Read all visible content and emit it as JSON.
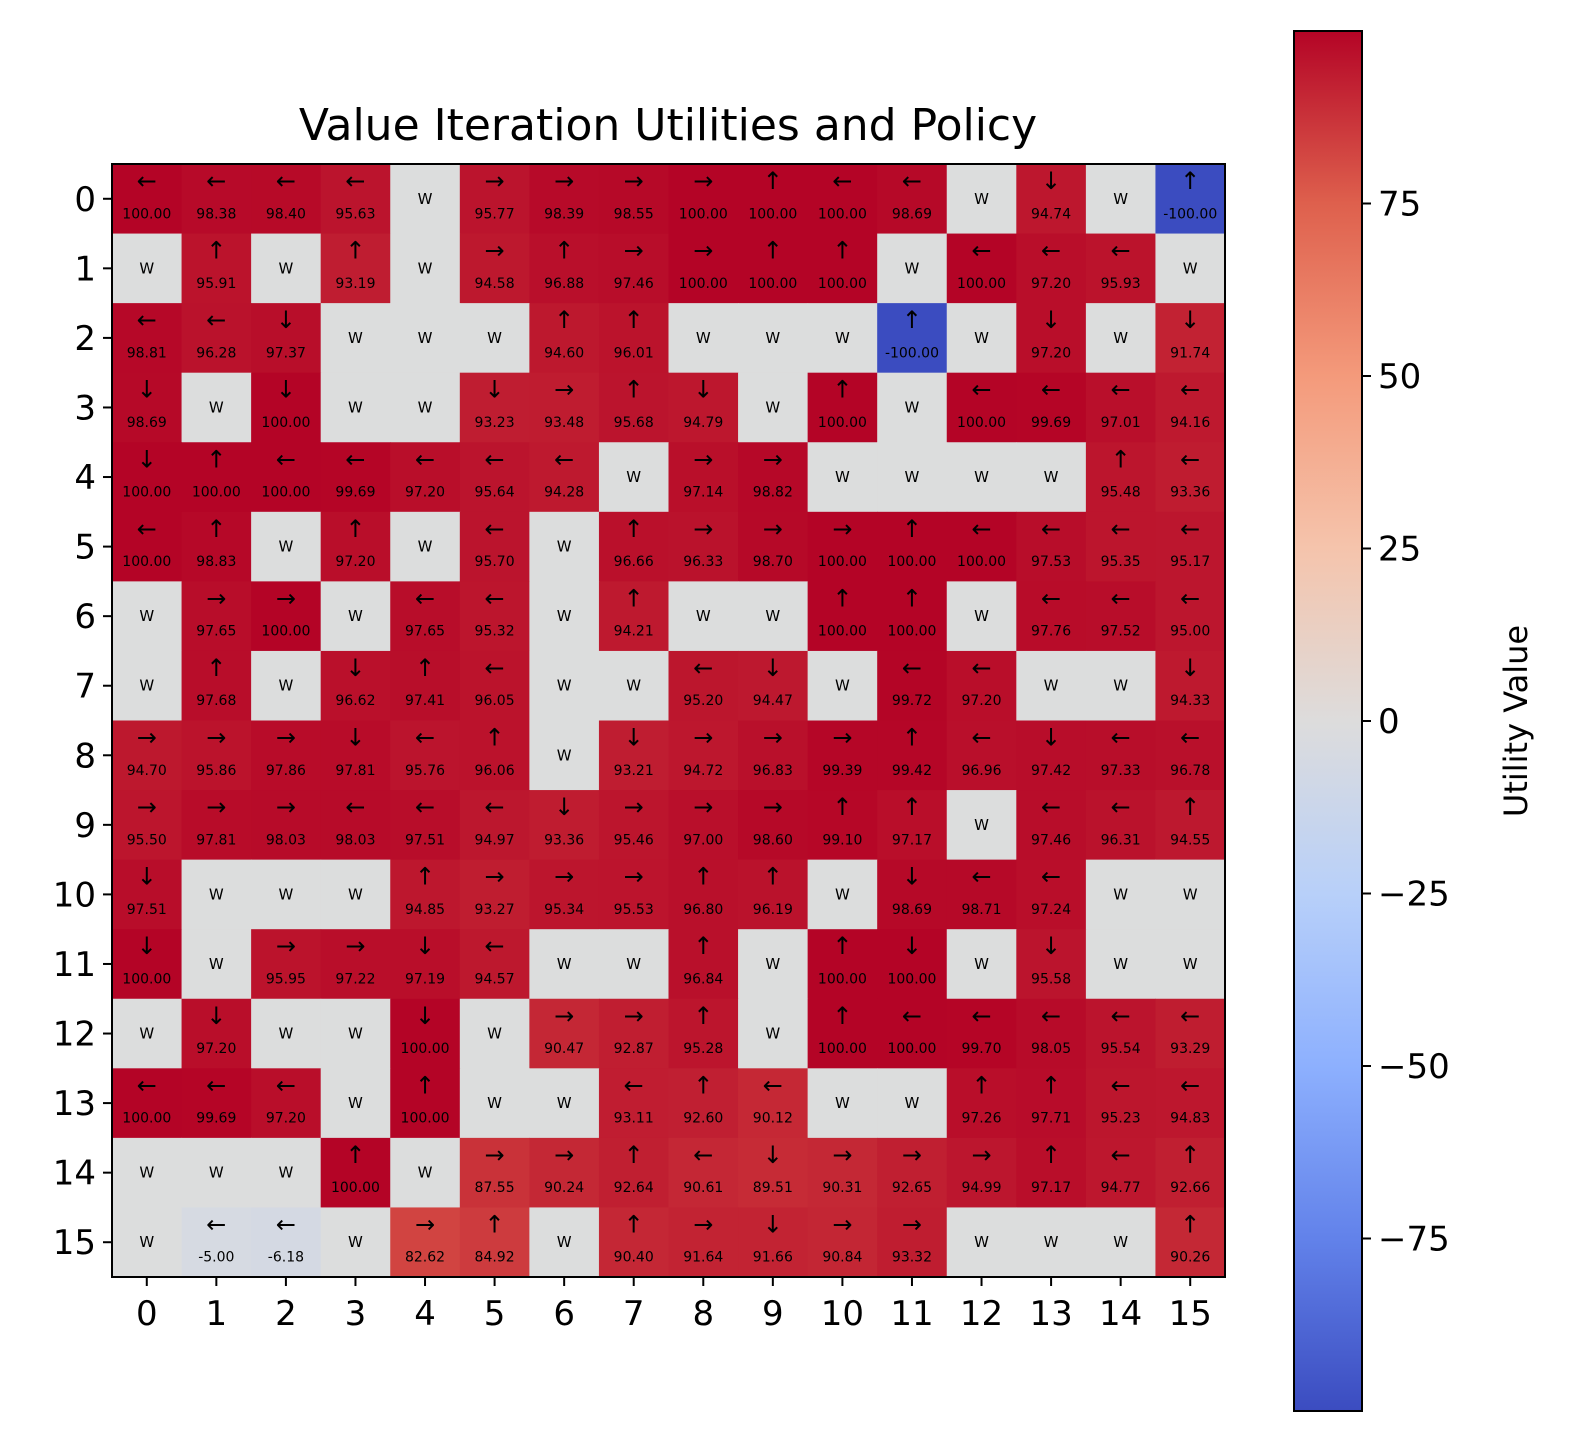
{
  "chart_data": {
    "type": "heatmap",
    "title": "Value Iteration Utilities and Policy",
    "x_ticks": [
      "0",
      "1",
      "2",
      "3",
      "4",
      "5",
      "6",
      "7",
      "8",
      "9",
      "10",
      "11",
      "12",
      "13",
      "14",
      "15"
    ],
    "y_ticks": [
      "0",
      "1",
      "2",
      "3",
      "4",
      "5",
      "6",
      "7",
      "8",
      "9",
      "10",
      "11",
      "12",
      "13",
      "14",
      "15"
    ],
    "colorbar": {
      "label": "Utility Value",
      "colormap": "coolwarm",
      "vmin": -100,
      "vmax": 100,
      "ticks": [
        75,
        50,
        25,
        0,
        -25,
        -50,
        -75
      ],
      "tick_labels": [
        "75",
        "50",
        "25",
        "0",
        "−25",
        "−50",
        "−75"
      ]
    },
    "wall_label": "W",
    "wall_color": "#dcdddd",
    "rows": [
      [
        [
          "←",
          "100.00"
        ],
        [
          "←",
          "98.38"
        ],
        [
          "←",
          "98.40"
        ],
        [
          "←",
          "95.63"
        ],
        [
          "W",
          null
        ],
        [
          "→",
          "95.77"
        ],
        [
          "→",
          "98.39"
        ],
        [
          "→",
          "98.55"
        ],
        [
          "→",
          "100.00"
        ],
        [
          "↑",
          "100.00"
        ],
        [
          "←",
          "100.00"
        ],
        [
          "←",
          "98.69"
        ],
        [
          "W",
          null
        ],
        [
          "↓",
          "94.74"
        ],
        [
          "W",
          null
        ],
        [
          "↑",
          "-100.00"
        ]
      ],
      [
        [
          "W",
          null
        ],
        [
          "↑",
          "95.91"
        ],
        [
          "W",
          null
        ],
        [
          "↑",
          "93.19"
        ],
        [
          "W",
          null
        ],
        [
          "→",
          "94.58"
        ],
        [
          "↑",
          "96.88"
        ],
        [
          "→",
          "97.46"
        ],
        [
          "→",
          "100.00"
        ],
        [
          "↑",
          "100.00"
        ],
        [
          "↑",
          "100.00"
        ],
        [
          "W",
          null
        ],
        [
          "←",
          "100.00"
        ],
        [
          "←",
          "97.20"
        ],
        [
          "←",
          "95.93"
        ],
        [
          "W",
          null
        ]
      ],
      [
        [
          "←",
          "98.81"
        ],
        [
          "←",
          "96.28"
        ],
        [
          "↓",
          "97.37"
        ],
        [
          "W",
          null
        ],
        [
          "W",
          null
        ],
        [
          "W",
          null
        ],
        [
          "↑",
          "94.60"
        ],
        [
          "↑",
          "96.01"
        ],
        [
          "W",
          null
        ],
        [
          "W",
          null
        ],
        [
          "W",
          null
        ],
        [
          "↑",
          "-100.00"
        ],
        [
          "W",
          null
        ],
        [
          "↓",
          "97.20"
        ],
        [
          "W",
          null
        ],
        [
          "↓",
          "91.74"
        ]
      ],
      [
        [
          "↓",
          "98.69"
        ],
        [
          "W",
          null
        ],
        [
          "↓",
          "100.00"
        ],
        [
          "W",
          null
        ],
        [
          "W",
          null
        ],
        [
          "↓",
          "93.23"
        ],
        [
          "→",
          "93.48"
        ],
        [
          "↑",
          "95.68"
        ],
        [
          "↓",
          "94.79"
        ],
        [
          "W",
          null
        ],
        [
          "↑",
          "100.00"
        ],
        [
          "W",
          null
        ],
        [
          "←",
          "100.00"
        ],
        [
          "←",
          "99.69"
        ],
        [
          "←",
          "97.01"
        ],
        [
          "←",
          "94.16"
        ]
      ],
      [
        [
          "↓",
          "100.00"
        ],
        [
          "↑",
          "100.00"
        ],
        [
          "←",
          "100.00"
        ],
        [
          "←",
          "99.69"
        ],
        [
          "←",
          "97.20"
        ],
        [
          "←",
          "95.64"
        ],
        [
          "←",
          "94.28"
        ],
        [
          "W",
          null
        ],
        [
          "→",
          "97.14"
        ],
        [
          "→",
          "98.82"
        ],
        [
          "W",
          null
        ],
        [
          "W",
          null
        ],
        [
          "W",
          null
        ],
        [
          "W",
          null
        ],
        [
          "↑",
          "95.48"
        ],
        [
          "←",
          "93.36"
        ]
      ],
      [
        [
          "←",
          "100.00"
        ],
        [
          "↑",
          "98.83"
        ],
        [
          "W",
          null
        ],
        [
          "↑",
          "97.20"
        ],
        [
          "W",
          null
        ],
        [
          "←",
          "95.70"
        ],
        [
          "W",
          null
        ],
        [
          "↑",
          "96.66"
        ],
        [
          "→",
          "96.33"
        ],
        [
          "→",
          "98.70"
        ],
        [
          "→",
          "100.00"
        ],
        [
          "↑",
          "100.00"
        ],
        [
          "←",
          "100.00"
        ],
        [
          "←",
          "97.53"
        ],
        [
          "←",
          "95.35"
        ],
        [
          "←",
          "95.17"
        ]
      ],
      [
        [
          "W",
          null
        ],
        [
          "→",
          "97.65"
        ],
        [
          "→",
          "100.00"
        ],
        [
          "W",
          null
        ],
        [
          "←",
          "97.65"
        ],
        [
          "←",
          "95.32"
        ],
        [
          "W",
          null
        ],
        [
          "↑",
          "94.21"
        ],
        [
          "W",
          null
        ],
        [
          "W",
          null
        ],
        [
          "↑",
          "100.00"
        ],
        [
          "↑",
          "100.00"
        ],
        [
          "W",
          null
        ],
        [
          "←",
          "97.76"
        ],
        [
          "←",
          "97.52"
        ],
        [
          "←",
          "95.00"
        ]
      ],
      [
        [
          "W",
          null
        ],
        [
          "↑",
          "97.68"
        ],
        [
          "W",
          null
        ],
        [
          "↓",
          "96.62"
        ],
        [
          "↑",
          "97.41"
        ],
        [
          "←",
          "96.05"
        ],
        [
          "W",
          null
        ],
        [
          "W",
          null
        ],
        [
          "←",
          "95.20"
        ],
        [
          "↓",
          "94.47"
        ],
        [
          "W",
          null
        ],
        [
          "←",
          "99.72"
        ],
        [
          "←",
          "97.20"
        ],
        [
          "W",
          null
        ],
        [
          "W",
          null
        ],
        [
          "↓",
          "94.33"
        ]
      ],
      [
        [
          "→",
          "94.70"
        ],
        [
          "→",
          "95.86"
        ],
        [
          "→",
          "97.86"
        ],
        [
          "↓",
          "97.81"
        ],
        [
          "←",
          "95.76"
        ],
        [
          "↑",
          "96.06"
        ],
        [
          "W",
          null
        ],
        [
          "↓",
          "93.21"
        ],
        [
          "→",
          "94.72"
        ],
        [
          "→",
          "96.83"
        ],
        [
          "→",
          "99.39"
        ],
        [
          "↑",
          "99.42"
        ],
        [
          "←",
          "96.96"
        ],
        [
          "↓",
          "97.42"
        ],
        [
          "←",
          "97.33"
        ],
        [
          "←",
          "96.78"
        ]
      ],
      [
        [
          "→",
          "95.50"
        ],
        [
          "→",
          "97.81"
        ],
        [
          "→",
          "98.03"
        ],
        [
          "←",
          "98.03"
        ],
        [
          "←",
          "97.51"
        ],
        [
          "←",
          "94.97"
        ],
        [
          "↓",
          "93.36"
        ],
        [
          "→",
          "95.46"
        ],
        [
          "→",
          "97.00"
        ],
        [
          "→",
          "98.60"
        ],
        [
          "↑",
          "99.10"
        ],
        [
          "↑",
          "97.17"
        ],
        [
          "W",
          null
        ],
        [
          "←",
          "97.46"
        ],
        [
          "←",
          "96.31"
        ],
        [
          "↑",
          "94.55"
        ]
      ],
      [
        [
          "↓",
          "97.51"
        ],
        [
          "W",
          null
        ],
        [
          "W",
          null
        ],
        [
          "W",
          null
        ],
        [
          "↑",
          "94.85"
        ],
        [
          "→",
          "93.27"
        ],
        [
          "→",
          "95.34"
        ],
        [
          "→",
          "95.53"
        ],
        [
          "↑",
          "96.80"
        ],
        [
          "↑",
          "96.19"
        ],
        [
          "W",
          null
        ],
        [
          "↓",
          "98.69"
        ],
        [
          "←",
          "98.71"
        ],
        [
          "←",
          "97.24"
        ],
        [
          "W",
          null
        ],
        [
          "W",
          null
        ]
      ],
      [
        [
          "↓",
          "100.00"
        ],
        [
          "W",
          null
        ],
        [
          "→",
          "95.95"
        ],
        [
          "→",
          "97.22"
        ],
        [
          "↓",
          "97.19"
        ],
        [
          "←",
          "94.57"
        ],
        [
          "W",
          null
        ],
        [
          "W",
          null
        ],
        [
          "↑",
          "96.84"
        ],
        [
          "W",
          null
        ],
        [
          "↑",
          "100.00"
        ],
        [
          "↓",
          "100.00"
        ],
        [
          "W",
          null
        ],
        [
          "↓",
          "95.58"
        ],
        [
          "W",
          null
        ],
        [
          "W",
          null
        ]
      ],
      [
        [
          "W",
          null
        ],
        [
          "↓",
          "97.20"
        ],
        [
          "W",
          null
        ],
        [
          "W",
          null
        ],
        [
          "↓",
          "100.00"
        ],
        [
          "W",
          null
        ],
        [
          "→",
          "90.47"
        ],
        [
          "→",
          "92.87"
        ],
        [
          "↑",
          "95.28"
        ],
        [
          "W",
          null
        ],
        [
          "↑",
          "100.00"
        ],
        [
          "←",
          "100.00"
        ],
        [
          "←",
          "99.70"
        ],
        [
          "←",
          "98.05"
        ],
        [
          "←",
          "95.54"
        ],
        [
          "←",
          "93.29"
        ]
      ],
      [
        [
          "←",
          "100.00"
        ],
        [
          "←",
          "99.69"
        ],
        [
          "←",
          "97.20"
        ],
        [
          "W",
          null
        ],
        [
          "↑",
          "100.00"
        ],
        [
          "W",
          null
        ],
        [
          "W",
          null
        ],
        [
          "←",
          "93.11"
        ],
        [
          "↑",
          "92.60"
        ],
        [
          "←",
          "90.12"
        ],
        [
          "W",
          null
        ],
        [
          "W",
          null
        ],
        [
          "↑",
          "97.26"
        ],
        [
          "↑",
          "97.71"
        ],
        [
          "←",
          "95.23"
        ],
        [
          "←",
          "94.83"
        ]
      ],
      [
        [
          "W",
          null
        ],
        [
          "W",
          null
        ],
        [
          "W",
          null
        ],
        [
          "↑",
          "100.00"
        ],
        [
          "W",
          null
        ],
        [
          "→",
          "87.55"
        ],
        [
          "→",
          "90.24"
        ],
        [
          "↑",
          "92.64"
        ],
        [
          "←",
          "90.61"
        ],
        [
          "↓",
          "89.51"
        ],
        [
          "→",
          "90.31"
        ],
        [
          "→",
          "92.65"
        ],
        [
          "→",
          "94.99"
        ],
        [
          "↑",
          "97.17"
        ],
        [
          "←",
          "94.77"
        ],
        [
          "↑",
          "92.66"
        ]
      ],
      [
        [
          "W",
          null
        ],
        [
          "←",
          "-5.00"
        ],
        [
          "←",
          "-6.18"
        ],
        [
          "W",
          null
        ],
        [
          "→",
          "82.62"
        ],
        [
          "↑",
          "84.92"
        ],
        [
          "W",
          null
        ],
        [
          "↑",
          "90.40"
        ],
        [
          "→",
          "91.64"
        ],
        [
          "↓",
          "91.66"
        ],
        [
          "→",
          "90.84"
        ],
        [
          "→",
          "93.32"
        ],
        [
          "W",
          null
        ],
        [
          "W",
          null
        ],
        [
          "W",
          null
        ],
        [
          "↑",
          "90.26"
        ]
      ]
    ]
  }
}
